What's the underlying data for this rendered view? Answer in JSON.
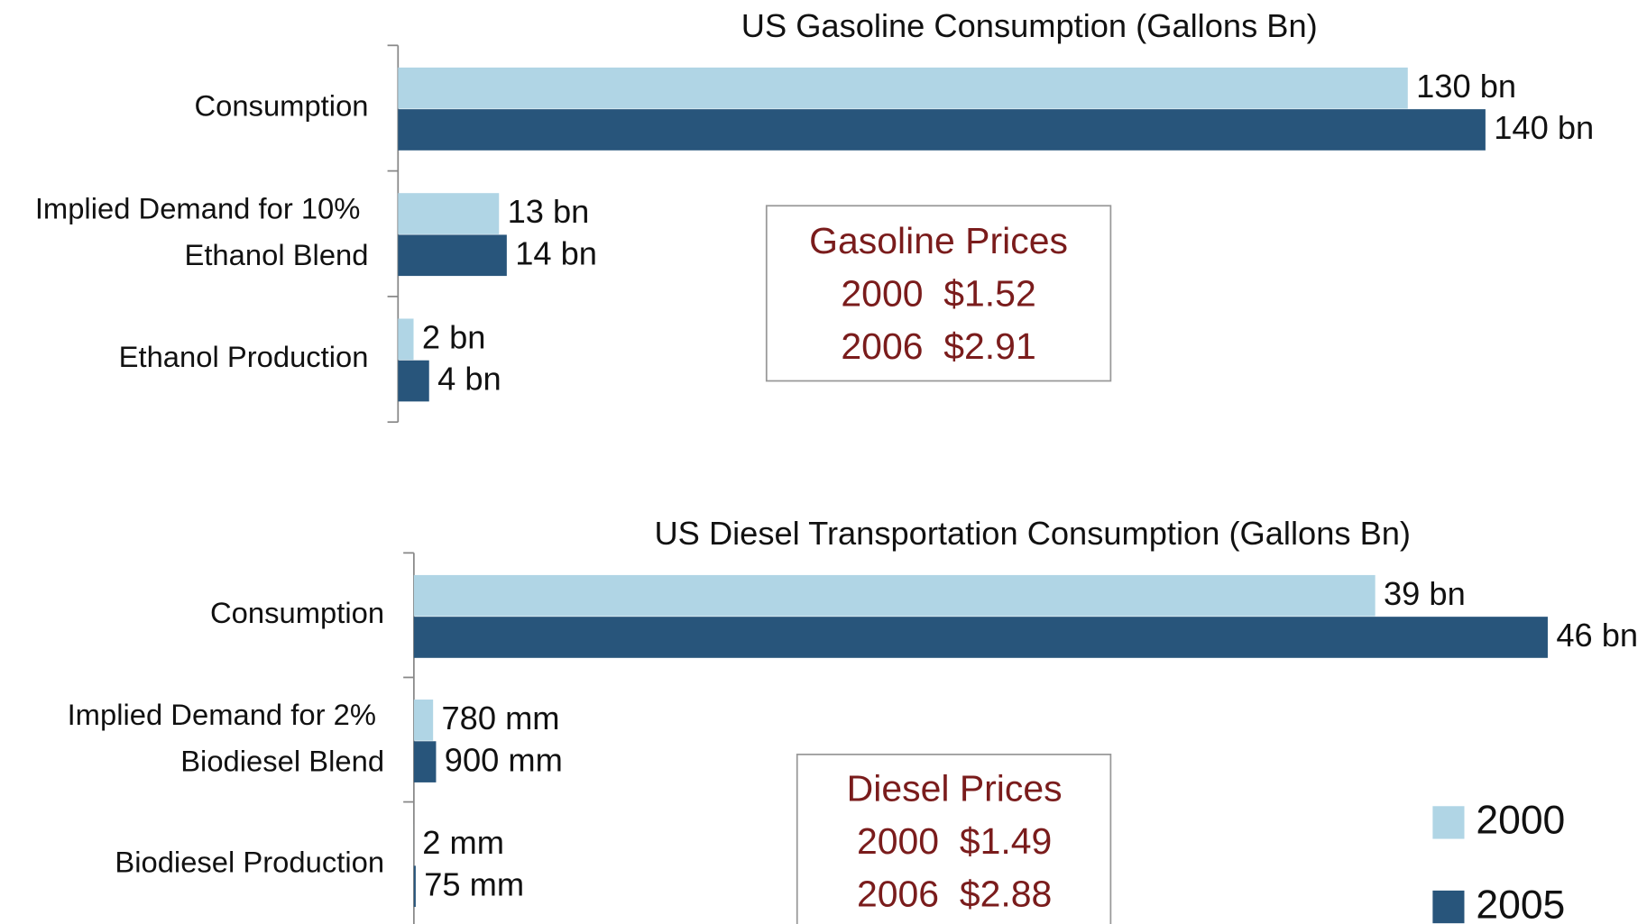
{
  "chart_data": [
    {
      "type": "bar",
      "title": "US Gasoline Consumption (Gallons Bn)",
      "categories": [
        "Consumption",
        "Implied Demand for 10% Ethanol Blend",
        "Ethanol Production"
      ],
      "series": [
        {
          "color": "#b0d5e5",
          "values": [
            130,
            13,
            2
          ],
          "value_labels": [
            "130 bn",
            "13 bn",
            "2 bn"
          ]
        },
        {
          "color": "#28557b",
          "values": [
            140,
            14,
            4
          ],
          "value_labels": [
            "140 bn",
            "14 bn",
            "4 bn"
          ]
        }
      ],
      "annotations": [
        "Gasoline Prices",
        "2000  $1.52",
        "2006  $2.91"
      ]
    },
    {
      "type": "bar",
      "title": "US Diesel Transportation Consumption (Gallons Bn)",
      "categories": [
        "Consumption",
        "Implied Demand for 2% Biodiesel Blend",
        "Biodiesel Production"
      ],
      "series": [
        {
          "name": "2000",
          "color": "#b0d5e5",
          "values": [
            39,
            0.78,
            0.002
          ],
          "value_labels": [
            "39 bn",
            "780 mm",
            "2 mm"
          ]
        },
        {
          "name": "2005",
          "color": "#28557b",
          "values": [
            46,
            0.9,
            0.075
          ],
          "value_labels": [
            "46 bn",
            "900 mm",
            "75 mm"
          ]
        }
      ],
      "annotations": [
        "Diesel Prices",
        "2000  $1.49",
        "2006  $2.88"
      ],
      "legend": "lower right"
    }
  ]
}
